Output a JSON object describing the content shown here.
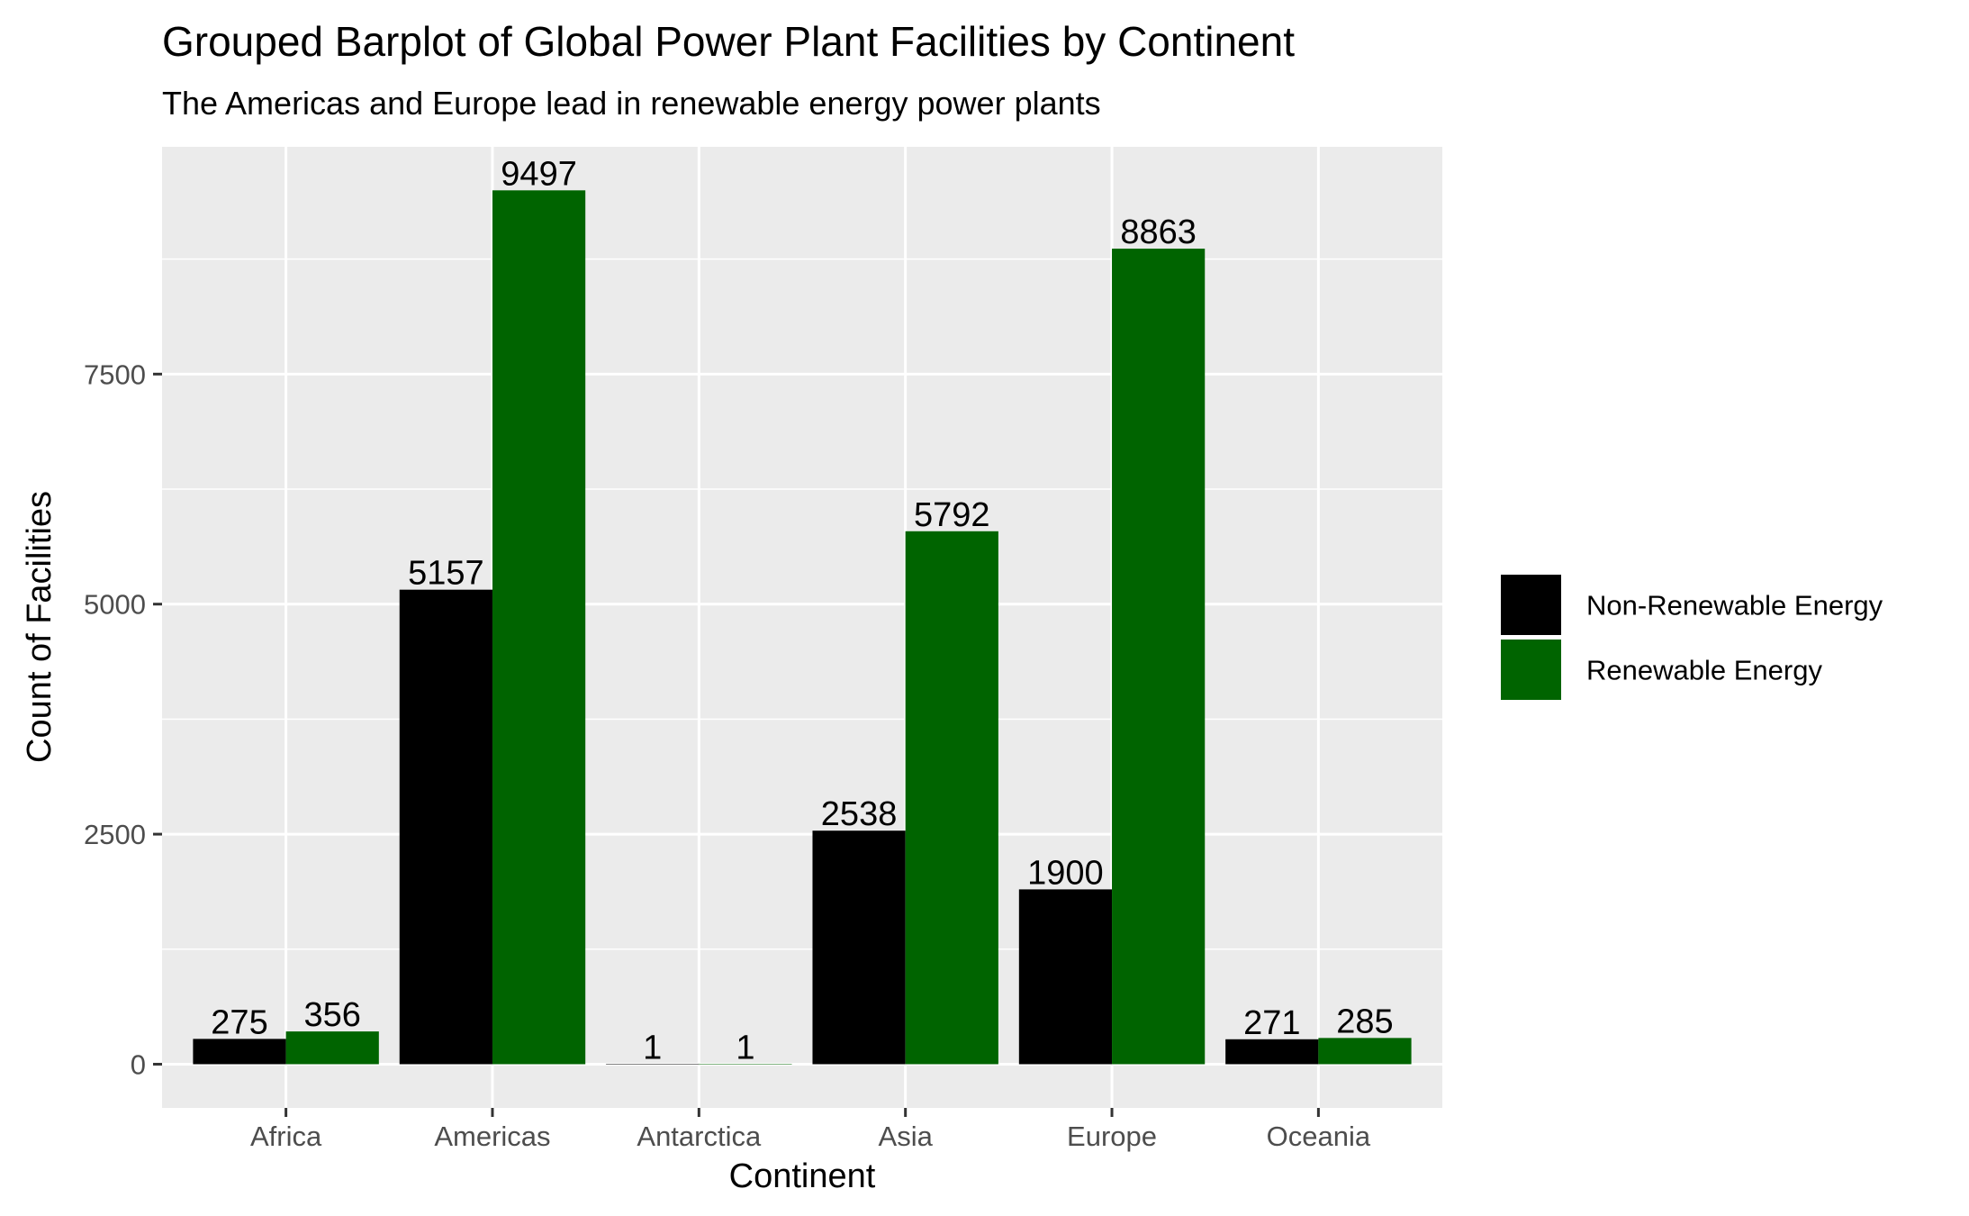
{
  "chart_data": {
    "type": "bar",
    "title": "Grouped Barplot of Global Power Plant Facilities by Continent",
    "subtitle": "The Americas and Europe lead in renewable energy power plants",
    "xlabel": "Continent",
    "ylabel": "Count of Facilities",
    "categories": [
      "Africa",
      "Americas",
      "Antarctica",
      "Asia",
      "Europe",
      "Oceania"
    ],
    "series": [
      {
        "name": "Non-Renewable Energy",
        "color": "#000000",
        "values": [
          275,
          5157,
          1,
          2538,
          1900,
          271
        ]
      },
      {
        "name": "Renewable Energy",
        "color": "#006400",
        "values": [
          356,
          9497,
          1,
          5792,
          8863,
          285
        ]
      }
    ],
    "ylim": [
      -475,
      9970
    ],
    "yticks": [
      0,
      2500,
      5000,
      7500
    ],
    "ytick_labels": [
      "0",
      "2500",
      "5000",
      "7500"
    ],
    "grid": true,
    "panel_background": "#EBEBEB",
    "grid_color": "#FFFFFF",
    "legend_position": "right"
  }
}
